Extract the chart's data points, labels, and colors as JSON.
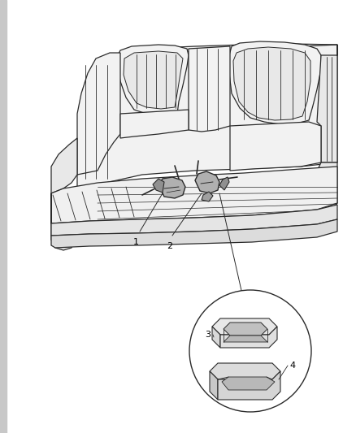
{
  "bg_color": "#ffffff",
  "line_color": "#2a2a2a",
  "label_color": "#000000",
  "fig_width": 4.38,
  "fig_height": 5.33,
  "dpi": 100,
  "gray_bar_color": "#c8c8c8",
  "seat_fill": "#f2f2f2",
  "seat_fill2": "#e8e8e8",
  "circle_fill": "#ffffff",
  "box_fill": "#e0e0e0",
  "box_fill2": "#d0d0d0"
}
